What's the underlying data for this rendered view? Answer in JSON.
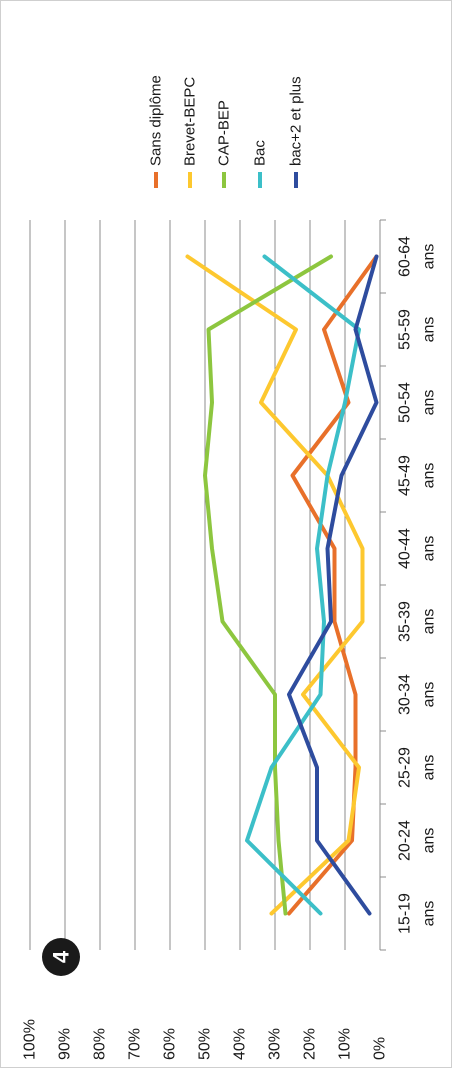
{
  "badge": "4",
  "chart_data": {
    "type": "line",
    "title": "",
    "xlabel": "",
    "ylabel": "",
    "orientation": "rotated-90-clockwise",
    "ylim": [
      0,
      100
    ],
    "y_ticks": [
      "100%",
      "90%",
      "80%",
      "70%",
      "60%",
      "50%",
      "40%",
      "30%",
      "20%",
      "10%",
      "0%"
    ],
    "categories": [
      [
        "15-19",
        "ans"
      ],
      [
        "20-24",
        "ans"
      ],
      [
        "25-29",
        "ans"
      ],
      [
        "30-34",
        "ans"
      ],
      [
        "35-39",
        "ans"
      ],
      [
        "40-44",
        "ans"
      ],
      [
        "45-49",
        "ans"
      ],
      [
        "50-54",
        "ans"
      ],
      [
        "55-59",
        "ans"
      ],
      [
        "60-64",
        "ans"
      ]
    ],
    "grid": true,
    "legend_position": "top",
    "series": [
      {
        "name": "Sans diplôme",
        "color": "#E8702A",
        "values": [
          26,
          8,
          7,
          7,
          13,
          13,
          25,
          9,
          16,
          1
        ]
      },
      {
        "name": "Brevet-BEPC",
        "color": "#FDC82F",
        "values": [
          31,
          9,
          6,
          22,
          5,
          5,
          15,
          34,
          24,
          55
        ]
      },
      {
        "name": "CAP-BEP",
        "color": "#8DC63F",
        "values": [
          27,
          29,
          30,
          30,
          45,
          48,
          50,
          48,
          49,
          14
        ]
      },
      {
        "name": "Bac",
        "color": "#3CBFC8",
        "values": [
          17,
          38,
          31,
          17,
          16,
          18,
          15,
          10,
          6,
          33
        ]
      },
      {
        "name": "bac+2 et plus",
        "color": "#2E4C9E",
        "values": [
          3,
          18,
          18,
          26,
          14,
          15,
          11,
          1,
          7,
          1
        ]
      }
    ]
  }
}
